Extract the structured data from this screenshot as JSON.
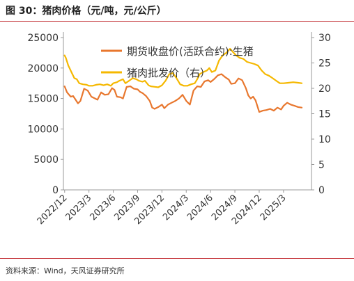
{
  "header": {
    "title": "图 30：猪肉价格（元/吨，元/公斤）"
  },
  "footer": {
    "source": "资料来源：Wind，天风证券研究所"
  },
  "colors": {
    "futures": "#e8772e",
    "wholesale": "#f5b800",
    "rule": "#c1272d",
    "axis": "#999999"
  },
  "chart_data": {
    "type": "line",
    "title": "",
    "xlabel": "",
    "ylabel": "",
    "x_ticks": [
      "2022/12",
      "2023/3",
      "2023/6",
      "2023/9",
      "2023/12",
      "2024/3",
      "2024/6",
      "2024/9",
      "2024/12",
      "2025/3"
    ],
    "y_left": {
      "ticks": [
        0,
        5000,
        10000,
        15000,
        20000,
        25000
      ],
      "lim": [
        0,
        25000
      ]
    },
    "y_right": {
      "ticks": [
        0,
        5,
        10,
        15,
        20,
        25,
        30
      ],
      "lim": [
        0,
        30
      ]
    },
    "grid": false,
    "legend": "top-center",
    "series": [
      {
        "name": "期货收盘价(活跃合约):生猪",
        "axis": "left",
        "x": [
          0.0,
          0.1,
          0.25,
          0.35,
          0.45,
          0.55,
          0.65,
          0.8,
          0.95,
          1.1,
          1.25,
          1.35,
          1.5,
          1.65,
          1.8,
          1.95,
          2.05,
          2.15,
          2.3,
          2.4,
          2.55,
          2.7,
          2.85,
          3.0,
          3.1,
          3.2,
          3.35,
          3.5,
          3.6,
          3.7,
          3.85,
          4.0,
          4.1,
          4.25,
          4.4,
          4.55,
          4.7,
          4.85,
          5.0,
          5.15,
          5.3,
          5.45,
          5.6,
          5.75,
          5.9,
          6.0,
          6.15,
          6.3,
          6.45,
          6.6,
          6.75,
          6.85,
          7.0,
          7.15,
          7.3,
          7.45,
          7.55,
          7.65,
          7.75,
          7.85,
          8.0,
          8.15,
          8.3,
          8.45,
          8.6,
          8.75,
          8.9,
          9.0,
          9.15,
          9.3,
          9.45,
          9.6,
          9.75
        ],
        "values": [
          17000,
          16000,
          15300,
          15400,
          14800,
          14200,
          14600,
          16600,
          16300,
          15300,
          15000,
          14800,
          16000,
          15600,
          15700,
          16700,
          16400,
          15300,
          15200,
          15000,
          16900,
          17000,
          16600,
          16500,
          16100,
          15900,
          15400,
          14600,
          13500,
          13300,
          13600,
          14000,
          13400,
          14000,
          14300,
          14600,
          15000,
          15600,
          14600,
          14000,
          16300,
          17000,
          16900,
          17800,
          18000,
          17700,
          18200,
          18800,
          19000,
          18500,
          18100,
          17400,
          17500,
          18300,
          18000,
          16700,
          15500,
          15000,
          15300,
          14700,
          12800,
          13000,
          13100,
          13300,
          13000,
          13500,
          13200,
          13800,
          14300,
          14000,
          13800,
          13600,
          13500
        ]
      },
      {
        "name": "猪肉批发价（右）",
        "axis": "right",
        "x": [
          0.0,
          0.05,
          0.15,
          0.3,
          0.4,
          0.5,
          0.6,
          0.75,
          0.9,
          1.0,
          1.15,
          1.3,
          1.45,
          1.6,
          1.75,
          1.9,
          2.0,
          2.15,
          2.25,
          2.4,
          2.5,
          2.65,
          2.8,
          2.95,
          3.05,
          3.2,
          3.3,
          3.45,
          3.55,
          3.7,
          3.85,
          4.0,
          4.15,
          4.3,
          4.45,
          4.6,
          4.75,
          4.9,
          5.05,
          5.2,
          5.35,
          5.45,
          5.55,
          5.7,
          5.85,
          5.95,
          6.05,
          6.2,
          6.35,
          6.5,
          6.65,
          6.8,
          6.95,
          7.05,
          7.2,
          7.35,
          7.5,
          7.65,
          7.8,
          7.95,
          8.1,
          8.25,
          8.4,
          8.55,
          8.7,
          8.85,
          9.0,
          9.2,
          9.4,
          9.6,
          9.75
        ],
        "values": [
          26.5,
          26.0,
          24.5,
          23.0,
          22.0,
          21.8,
          21.0,
          20.8,
          20.7,
          20.5,
          20.5,
          20.7,
          20.8,
          20.6,
          20.8,
          20.5,
          21.0,
          21.2,
          21.5,
          21.8,
          21.0,
          21.5,
          22.0,
          21.8,
          21.5,
          21.3,
          21.5,
          20.6,
          20.4,
          20.3,
          20.2,
          20.6,
          21.5,
          22.8,
          23.0,
          22.0,
          20.8,
          20.5,
          20.5,
          20.8,
          21.0,
          21.8,
          22.8,
          23.2,
          23.5,
          24.0,
          23.2,
          23.5,
          25.5,
          26.5,
          27.0,
          27.8,
          27.0,
          26.5,
          26.0,
          25.8,
          25.2,
          25.0,
          24.8,
          24.5,
          23.5,
          22.8,
          22.5,
          22.0,
          21.5,
          21.0,
          21.0,
          21.1,
          21.2,
          21.1,
          21.0
        ]
      }
    ]
  }
}
